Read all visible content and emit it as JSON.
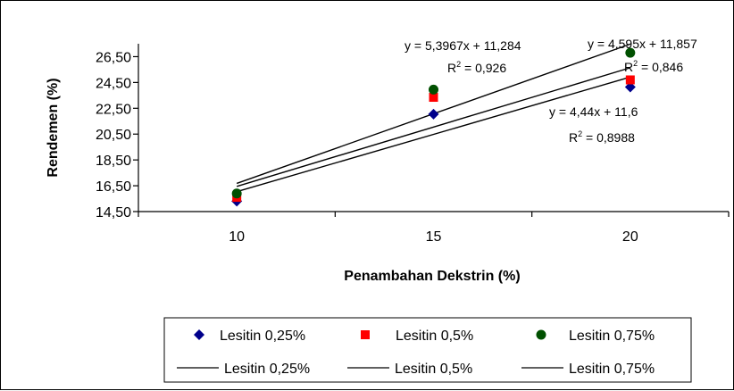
{
  "chart_data": {
    "type": "scatter",
    "title": "",
    "xlabel": "Penambahan Dekstrin (%)",
    "ylabel": "Rendemen (%)",
    "x_ticks": [
      "10",
      "15",
      "20"
    ],
    "y_ticks": [
      "14,50",
      "16,50",
      "18,50",
      "20,50",
      "22,50",
      "24,50",
      "26,50"
    ],
    "y_tick_values": [
      14.5,
      16.5,
      18.5,
      20.5,
      22.5,
      24.5,
      26.5
    ],
    "xlim": [
      7.5,
      22.5
    ],
    "ylim": [
      14.5,
      27.5
    ],
    "grid": false,
    "legend_position": "bottom",
    "series": [
      {
        "name": "Lesitin 0,25%",
        "marker": "diamond",
        "color": "#00008b",
        "x": [
          10,
          15,
          20
        ],
        "y": [
          15.3,
          22.05,
          24.15
        ],
        "trend_label": "Lesitin 0,25%",
        "trend_slope": 4.44,
        "trend_intercept": 11.6,
        "equation": "y = 4,44x + 11,6",
        "r2_label": "R",
        "r2_value": " = 0,8988"
      },
      {
        "name": "Lesitin 0,5%",
        "marker": "square",
        "color": "#ff0000",
        "x": [
          10,
          15,
          20
        ],
        "y": [
          15.6,
          23.35,
          24.7
        ],
        "trend_label": "Lesitin 0,5%",
        "trend_slope": 4.595,
        "trend_intercept": 11.857,
        "equation": "y = 4,595x + 11,857",
        "r2_label": "R",
        "r2_value": " = 0,846"
      },
      {
        "name": "Lesitin 0,75%",
        "marker": "circle",
        "color": "#005000",
        "x": [
          10,
          15,
          20
        ],
        "y": [
          15.9,
          23.95,
          26.8
        ],
        "trend_label": "Lesitin 0,75%",
        "trend_slope": 5.3967,
        "trend_intercept": 11.284,
        "equation": "y = 5,3967x + 11,284",
        "r2_label": "R",
        "r2_value": " = 0,926"
      }
    ]
  }
}
